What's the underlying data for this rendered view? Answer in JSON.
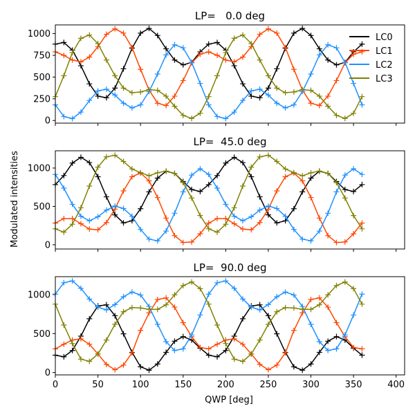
{
  "chart_data": {
    "type": "line",
    "ylabel": "Modulated intensities",
    "xlabel": "QWP [deg]",
    "x": [
      0,
      10,
      20,
      30,
      40,
      50,
      60,
      70,
      80,
      90,
      100,
      110,
      120,
      130,
      140,
      150,
      160,
      170,
      180,
      190,
      200,
      210,
      220,
      230,
      240,
      250,
      260,
      270,
      280,
      290,
      300,
      310,
      320,
      330,
      340,
      350,
      360
    ],
    "xlim": [
      0,
      410
    ],
    "xticks": [
      0,
      50,
      100,
      150,
      200,
      250,
      300,
      350,
      400
    ],
    "legend": {
      "placement": "top-right",
      "entries": [
        "LC0",
        "LC1",
        "LC2",
        "LC3"
      ]
    },
    "series_colors": {
      "LC0": "#000000",
      "LC1": "#ff4500",
      "LC2": "#1e90ff",
      "LC3": "#808000"
    },
    "marker": "+",
    "panels": [
      {
        "title": "LP=   0.0 deg",
        "ylim": [
          -30,
          1100
        ],
        "yticks": [
          0,
          250,
          500,
          750,
          1000
        ],
        "show_legend": true,
        "show_xticklabels": false,
        "period": {
          "LC0": [
            879,
            898,
            810,
            630,
            422,
            280,
            261,
            373,
            595,
            831,
            1005,
            1059,
            978,
            825,
            696,
            640,
            669,
            790
          ],
          "LC1": [
            790,
            750,
            696,
            675,
            730,
            849,
            992,
            1054,
            1005,
            839,
            589,
            350,
            199,
            172,
            280,
            460,
            664,
            763
          ],
          "LC2": [
            180,
            46,
            22,
            97,
            231,
            341,
            360,
            293,
            199,
            145,
            180,
            333,
            535,
            755,
            871,
            836,
            669,
            427
          ],
          "LC3": [
            275,
            515,
            782,
            946,
            984,
            885,
            696,
            515,
            373,
            320,
            328,
            355,
            347,
            280,
            164,
            59,
            24,
            83
          ]
        }
      },
      {
        "title": "LP=  45.0 deg",
        "ylim": [
          -55,
          1225
        ],
        "yticks": [
          0,
          500,
          1000
        ],
        "show_legend": false,
        "show_xticklabels": false,
        "period": {
          "LC0": [
            784,
            902,
            1065,
            1140,
            1071,
            887,
            625,
            390,
            285,
            313,
            470,
            690,
            869,
            958,
            931,
            824,
            720,
            694
          ],
          "LC1": [
            283,
            342,
            342,
            274,
            205,
            196,
            290,
            465,
            702,
            887,
            935,
            833,
            616,
            348,
            119,
            30,
            36,
            143
          ],
          "LC2": [
            917,
            738,
            527,
            372,
            313,
            365,
            452,
            505,
            473,
            372,
            200,
            74,
            51,
            179,
            411,
            690,
            908,
            991
          ],
          "LC3": [
            208,
            164,
            268,
            482,
            765,
            1012,
            1146,
            1167,
            1086,
            988,
            940,
            899,
            938,
            961,
            931,
            810,
            610,
            381
          ]
        }
      },
      {
        "title": "LP=  90.0 deg",
        "ylim": [
          -30,
          1230
        ],
        "yticks": [
          0,
          500,
          1000
        ],
        "show_legend": false,
        "show_xticklabels": true,
        "period": {
          "LC0": [
            223,
            202,
            283,
            467,
            690,
            854,
            869,
            729,
            497,
            259,
            74,
            30,
            110,
            259,
            402,
            461,
            417,
            313
          ],
          "LC1": [
            304,
            363,
            417,
            432,
            363,
            238,
            104,
            36,
            96,
            253,
            540,
            765,
            937,
            958,
            839,
            640,
            461,
            321
          ],
          "LC2": [
            1006,
            1152,
            1176,
            1080,
            943,
            839,
            804,
            872,
            973,
            1033,
            995,
            848,
            619,
            396,
            283,
            304,
            482,
            738
          ],
          "LC3": [
            878,
            610,
            372,
            172,
            143,
            238,
            417,
            619,
            780,
            833,
            828,
            810,
            810,
            869,
            997,
            1116,
            1161,
            1077
          ]
        }
      }
    ]
  }
}
